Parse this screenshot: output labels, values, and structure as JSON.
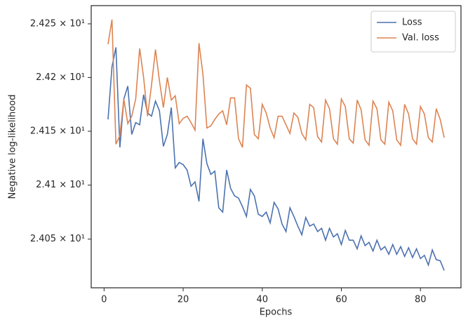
{
  "chart_data": {
    "type": "line",
    "xlabel": "Epochs",
    "ylabel": "Negative log-likelihood",
    "x": [
      1,
      2,
      3,
      4,
      5,
      6,
      7,
      8,
      9,
      10,
      11,
      12,
      13,
      14,
      15,
      16,
      17,
      18,
      19,
      20,
      21,
      22,
      23,
      24,
      25,
      26,
      27,
      28,
      29,
      30,
      31,
      32,
      33,
      34,
      35,
      36,
      37,
      38,
      39,
      40,
      41,
      42,
      43,
      44,
      45,
      46,
      47,
      48,
      49,
      50,
      51,
      52,
      53,
      54,
      55,
      56,
      57,
      58,
      59,
      60,
      61,
      62,
      63,
      64,
      65,
      66,
      67,
      68,
      69,
      70,
      71,
      72,
      73,
      74,
      75,
      76,
      77,
      78,
      79,
      80,
      81,
      82,
      83,
      84,
      85,
      86
    ],
    "series": [
      {
        "name": "Loss",
        "color": "#4c72b0",
        "values": [
          24.161,
          24.21,
          24.228,
          24.135,
          24.18,
          24.192,
          24.147,
          24.158,
          24.156,
          24.184,
          24.167,
          24.164,
          24.178,
          24.169,
          24.136,
          24.147,
          24.172,
          24.116,
          24.121,
          24.119,
          24.114,
          24.099,
          24.103,
          24.085,
          24.143,
          24.12,
          24.11,
          24.113,
          24.079,
          24.075,
          24.114,
          24.097,
          24.09,
          24.088,
          24.08,
          24.071,
          24.096,
          24.09,
          24.073,
          24.071,
          24.075,
          24.065,
          24.084,
          24.078,
          24.064,
          24.057,
          24.079,
          24.071,
          24.062,
          24.054,
          24.07,
          24.062,
          24.064,
          24.057,
          24.06,
          24.049,
          24.06,
          24.052,
          24.055,
          24.045,
          24.058,
          24.049,
          24.049,
          24.041,
          24.053,
          24.044,
          24.047,
          24.039,
          24.049,
          24.04,
          24.043,
          24.036,
          24.045,
          24.036,
          24.043,
          24.034,
          24.042,
          24.033,
          24.041,
          24.032,
          24.035,
          24.026,
          24.04,
          24.031,
          24.03,
          24.021
        ]
      },
      {
        "name": "Val. loss",
        "color": "#dd8452",
        "values": [
          24.231,
          24.254,
          24.138,
          24.146,
          24.18,
          24.157,
          24.164,
          24.18,
          24.227,
          24.2,
          24.164,
          24.193,
          24.226,
          24.197,
          24.172,
          24.2,
          24.179,
          24.183,
          24.157,
          24.162,
          24.164,
          24.158,
          24.151,
          24.232,
          24.203,
          24.153,
          24.155,
          24.161,
          24.166,
          24.169,
          24.156,
          24.181,
          24.181,
          24.143,
          24.135,
          24.193,
          24.19,
          24.147,
          24.143,
          24.175,
          24.167,
          24.153,
          24.144,
          24.164,
          24.164,
          24.156,
          24.148,
          24.167,
          24.163,
          24.148,
          24.142,
          24.175,
          24.172,
          24.145,
          24.14,
          24.179,
          24.171,
          24.143,
          24.138,
          24.18,
          24.173,
          24.143,
          24.139,
          24.179,
          24.17,
          24.142,
          24.137,
          24.178,
          24.171,
          24.142,
          24.138,
          24.177,
          24.169,
          24.142,
          24.137,
          24.175,
          24.166,
          24.143,
          24.138,
          24.173,
          24.166,
          24.144,
          24.14,
          24.171,
          24.161,
          24.144
        ]
      }
    ],
    "xlim": [
      -3.25,
      90.25
    ],
    "xticks": [
      0,
      20,
      40,
      60,
      80
    ],
    "ylim": [
      24.005,
      24.267
    ],
    "yscale": "log",
    "yticks": [
      {
        "value": 24.05,
        "label": "2.405 × 10¹"
      },
      {
        "value": 24.1,
        "label": "2.41 × 10¹"
      },
      {
        "value": 24.15,
        "label": "2.415 × 10¹"
      },
      {
        "value": 24.2,
        "label": "2.42 × 10¹"
      },
      {
        "value": 24.25,
        "label": "2.425 × 10¹"
      }
    ],
    "grid": false,
    "legend": "upper right"
  }
}
